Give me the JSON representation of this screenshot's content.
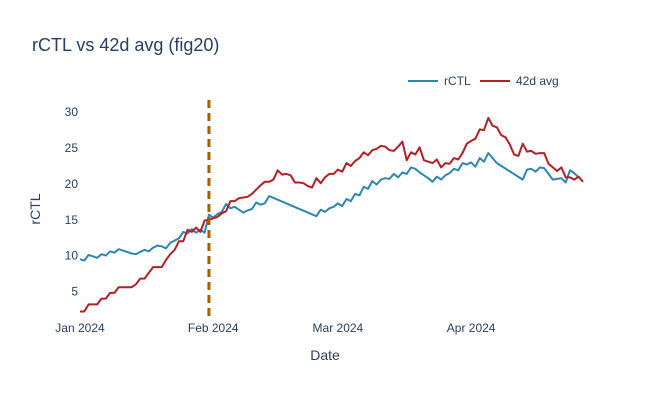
{
  "chart_data": {
    "type": "line",
    "title": "rCTL vs 42d avg (fig20)",
    "xlabel": "Date",
    "ylabel": "rCTL",
    "x_range": [
      "2024-01-01",
      "2024-04-24"
    ],
    "ylim": [
      1.3,
      31.7
    ],
    "x_ticks": [
      {
        "date": "2024-01-01",
        "label": "Jan 2024"
      },
      {
        "date": "2024-02-01",
        "label": "Feb 2024"
      },
      {
        "date": "2024-03-01",
        "label": "Mar 2024"
      },
      {
        "date": "2024-04-01",
        "label": "Apr 2024"
      }
    ],
    "y_ticks": [
      5,
      10,
      15,
      20,
      25,
      30
    ],
    "grid": false,
    "legend": "top-right, horizontal",
    "marker_line": {
      "date": "2024-01-31",
      "color": "#a65e00",
      "style": "dashed"
    },
    "series": [
      {
        "name": "rCTL",
        "color": "#2e86b5",
        "points": [
          [
            "2024-01-01",
            9.5
          ],
          [
            "2024-01-02",
            9.3
          ],
          [
            "2024-01-03",
            10.1
          ],
          [
            "2024-01-04",
            9.9
          ],
          [
            "2024-01-05",
            9.7
          ],
          [
            "2024-01-06",
            10.2
          ],
          [
            "2024-01-07",
            10.0
          ],
          [
            "2024-01-08",
            10.6
          ],
          [
            "2024-01-09",
            10.4
          ],
          [
            "2024-01-10",
            10.9
          ],
          [
            "2024-01-11",
            10.7
          ],
          [
            "2024-01-12",
            10.5
          ],
          [
            "2024-01-13",
            10.3
          ],
          [
            "2024-01-14",
            10.2
          ],
          [
            "2024-01-15",
            10.5
          ],
          [
            "2024-01-16",
            10.8
          ],
          [
            "2024-01-17",
            10.6
          ],
          [
            "2024-01-18",
            11.1
          ],
          [
            "2024-01-19",
            11.4
          ],
          [
            "2024-01-20",
            11.3
          ],
          [
            "2024-01-21",
            11.0
          ],
          [
            "2024-01-22",
            11.8
          ],
          [
            "2024-01-23",
            12.1
          ],
          [
            "2024-01-24",
            12.4
          ],
          [
            "2024-01-25",
            13.3
          ],
          [
            "2024-01-26",
            13.1
          ],
          [
            "2024-01-27",
            13.7
          ],
          [
            "2024-01-28",
            13.2
          ],
          [
            "2024-01-29",
            13.6
          ],
          [
            "2024-01-30",
            13.2
          ],
          [
            "2024-01-31",
            15.7
          ],
          [
            "2024-02-01",
            15.3
          ],
          [
            "2024-02-02",
            15.8
          ],
          [
            "2024-02-03",
            16.1
          ],
          [
            "2024-02-04",
            17.2
          ],
          [
            "2024-02-05",
            16.6
          ],
          [
            "2024-02-06",
            16.8
          ],
          [
            "2024-02-07",
            16.4
          ],
          [
            "2024-02-08",
            16.0
          ],
          [
            "2024-02-09",
            16.3
          ],
          [
            "2024-02-10",
            16.5
          ],
          [
            "2024-02-11",
            17.4
          ],
          [
            "2024-02-12",
            17.1
          ],
          [
            "2024-02-13",
            17.3
          ],
          [
            "2024-02-14",
            18.3
          ],
          [
            "2024-02-25",
            15.5
          ],
          [
            "2024-02-26",
            16.4
          ],
          [
            "2024-02-27",
            16.1
          ],
          [
            "2024-02-28",
            16.6
          ],
          [
            "2024-02-29",
            16.8
          ],
          [
            "2024-03-01",
            17.3
          ],
          [
            "2024-03-02",
            16.9
          ],
          [
            "2024-03-03",
            17.9
          ],
          [
            "2024-03-04",
            17.6
          ],
          [
            "2024-03-05",
            18.6
          ],
          [
            "2024-03-06",
            18.4
          ],
          [
            "2024-03-07",
            19.6
          ],
          [
            "2024-03-08",
            19.3
          ],
          [
            "2024-03-09",
            20.4
          ],
          [
            "2024-03-10",
            19.9
          ],
          [
            "2024-03-11",
            20.6
          ],
          [
            "2024-03-12",
            20.8
          ],
          [
            "2024-03-13",
            20.7
          ],
          [
            "2024-03-14",
            21.4
          ],
          [
            "2024-03-15",
            20.9
          ],
          [
            "2024-03-16",
            21.6
          ],
          [
            "2024-03-17",
            21.4
          ],
          [
            "2024-03-18",
            22.3
          ],
          [
            "2024-03-19",
            22.1
          ],
          [
            "2024-03-20",
            21.6
          ],
          [
            "2024-03-21",
            21.2
          ],
          [
            "2024-03-22",
            20.8
          ],
          [
            "2024-03-23",
            20.3
          ],
          [
            "2024-03-24",
            21.0
          ],
          [
            "2024-03-25",
            20.6
          ],
          [
            "2024-03-26",
            21.2
          ],
          [
            "2024-03-27",
            21.5
          ],
          [
            "2024-03-28",
            22.1
          ],
          [
            "2024-03-29",
            21.9
          ],
          [
            "2024-03-30",
            22.9
          ],
          [
            "2024-03-31",
            22.7
          ],
          [
            "2024-04-01",
            23.0
          ],
          [
            "2024-04-02",
            22.4
          ],
          [
            "2024-04-03",
            23.6
          ],
          [
            "2024-04-04",
            23.1
          ],
          [
            "2024-04-05",
            24.3
          ],
          [
            "2024-04-06",
            23.6
          ],
          [
            "2024-04-07",
            22.9
          ],
          [
            "2024-04-13",
            20.6
          ],
          [
            "2024-04-14",
            22.0
          ],
          [
            "2024-04-15",
            22.1
          ],
          [
            "2024-04-16",
            21.7
          ],
          [
            "2024-04-17",
            22.3
          ],
          [
            "2024-04-18",
            22.2
          ],
          [
            "2024-04-19",
            21.4
          ],
          [
            "2024-04-20",
            20.6
          ],
          [
            "2024-04-21",
            20.7
          ],
          [
            "2024-04-22",
            20.8
          ],
          [
            "2024-04-23",
            20.2
          ],
          [
            "2024-04-24",
            21.9
          ],
          [
            "2024-04-25",
            21.5
          ],
          [
            "2024-04-26",
            20.9
          ]
        ]
      },
      {
        "name": "42d avg",
        "color": "#b51f24",
        "points": [
          [
            "2024-01-01",
            2.2
          ],
          [
            "2024-01-02",
            2.2
          ],
          [
            "2024-01-03",
            3.2
          ],
          [
            "2024-01-04",
            3.2
          ],
          [
            "2024-01-05",
            3.2
          ],
          [
            "2024-01-06",
            4.0
          ],
          [
            "2024-01-07",
            4.0
          ],
          [
            "2024-01-08",
            4.8
          ],
          [
            "2024-01-09",
            4.8
          ],
          [
            "2024-01-10",
            5.6
          ],
          [
            "2024-01-11",
            5.6
          ],
          [
            "2024-01-12",
            5.6
          ],
          [
            "2024-01-13",
            5.6
          ],
          [
            "2024-01-14",
            6.0
          ],
          [
            "2024-01-15",
            6.8
          ],
          [
            "2024-01-16",
            6.8
          ],
          [
            "2024-01-17",
            7.6
          ],
          [
            "2024-01-18",
            8.4
          ],
          [
            "2024-01-19",
            8.4
          ],
          [
            "2024-01-20",
            8.4
          ],
          [
            "2024-01-21",
            9.4
          ],
          [
            "2024-01-22",
            10.2
          ],
          [
            "2024-01-23",
            10.8
          ],
          [
            "2024-01-24",
            12.0
          ],
          [
            "2024-01-25",
            12.0
          ],
          [
            "2024-01-26",
            13.6
          ],
          [
            "2024-01-27",
            13.3
          ],
          [
            "2024-01-28",
            13.9
          ],
          [
            "2024-01-29",
            13.3
          ],
          [
            "2024-01-30",
            14.9
          ],
          [
            "2024-01-31",
            15.0
          ],
          [
            "2024-02-01",
            15.2
          ],
          [
            "2024-02-02",
            15.4
          ],
          [
            "2024-02-03",
            15.9
          ],
          [
            "2024-02-04",
            16.2
          ],
          [
            "2024-02-05",
            17.6
          ],
          [
            "2024-02-06",
            17.6
          ],
          [
            "2024-02-07",
            18.0
          ],
          [
            "2024-02-08",
            18.1
          ],
          [
            "2024-02-09",
            18.2
          ],
          [
            "2024-02-10",
            18.6
          ],
          [
            "2024-02-11",
            19.2
          ],
          [
            "2024-02-12",
            19.8
          ],
          [
            "2024-02-13",
            20.3
          ],
          [
            "2024-02-14",
            20.3
          ],
          [
            "2024-02-15",
            20.6
          ],
          [
            "2024-02-16",
            21.9
          ],
          [
            "2024-02-17",
            21.3
          ],
          [
            "2024-02-18",
            21.4
          ],
          [
            "2024-02-19",
            21.2
          ],
          [
            "2024-02-20",
            20.2
          ],
          [
            "2024-02-21",
            20.2
          ],
          [
            "2024-02-22",
            20.1
          ],
          [
            "2024-02-23",
            19.7
          ],
          [
            "2024-02-24",
            19.5
          ],
          [
            "2024-02-25",
            20.8
          ],
          [
            "2024-02-26",
            20.1
          ],
          [
            "2024-02-27",
            20.9
          ],
          [
            "2024-02-28",
            21.4
          ],
          [
            "2024-02-29",
            21.4
          ],
          [
            "2024-03-01",
            22.0
          ],
          [
            "2024-03-02",
            21.7
          ],
          [
            "2024-03-03",
            22.9
          ],
          [
            "2024-03-04",
            22.5
          ],
          [
            "2024-03-05",
            23.2
          ],
          [
            "2024-03-06",
            23.6
          ],
          [
            "2024-03-07",
            24.4
          ],
          [
            "2024-03-08",
            24.0
          ],
          [
            "2024-03-09",
            24.7
          ],
          [
            "2024-03-10",
            24.9
          ],
          [
            "2024-03-11",
            25.3
          ],
          [
            "2024-03-12",
            25.2
          ],
          [
            "2024-03-13",
            24.7
          ],
          [
            "2024-03-14",
            24.6
          ],
          [
            "2024-03-15",
            25.2
          ],
          [
            "2024-03-16",
            25.9
          ],
          [
            "2024-03-17",
            23.3
          ],
          [
            "2024-03-18",
            24.4
          ],
          [
            "2024-03-19",
            24.1
          ],
          [
            "2024-03-20",
            25.1
          ],
          [
            "2024-03-21",
            23.3
          ],
          [
            "2024-03-22",
            23.1
          ],
          [
            "2024-03-23",
            22.9
          ],
          [
            "2024-03-24",
            23.4
          ],
          [
            "2024-03-25",
            22.3
          ],
          [
            "2024-03-26",
            22.9
          ],
          [
            "2024-03-27",
            22.8
          ],
          [
            "2024-03-28",
            23.6
          ],
          [
            "2024-03-29",
            23.4
          ],
          [
            "2024-03-30",
            24.3
          ],
          [
            "2024-03-31",
            25.6
          ],
          [
            "2024-04-01",
            26.0
          ],
          [
            "2024-04-02",
            26.3
          ],
          [
            "2024-04-03",
            27.6
          ],
          [
            "2024-04-04",
            27.5
          ],
          [
            "2024-04-05",
            29.2
          ],
          [
            "2024-04-06",
            28.1
          ],
          [
            "2024-04-07",
            27.9
          ],
          [
            "2024-04-08",
            26.8
          ],
          [
            "2024-04-09",
            26.5
          ],
          [
            "2024-04-10",
            25.5
          ],
          [
            "2024-04-11",
            24.1
          ],
          [
            "2024-04-12",
            23.9
          ],
          [
            "2024-04-13",
            25.6
          ],
          [
            "2024-04-14",
            24.5
          ],
          [
            "2024-04-15",
            24.6
          ],
          [
            "2024-04-16",
            24.2
          ],
          [
            "2024-04-17",
            24.3
          ],
          [
            "2024-04-18",
            24.3
          ],
          [
            "2024-04-19",
            22.8
          ],
          [
            "2024-04-20",
            22.3
          ],
          [
            "2024-04-21",
            21.8
          ],
          [
            "2024-04-22",
            22.3
          ],
          [
            "2024-04-23",
            20.9
          ],
          [
            "2024-04-24",
            20.9
          ],
          [
            "2024-04-25",
            20.6
          ],
          [
            "2024-04-26",
            21.0
          ],
          [
            "2024-04-27",
            20.3
          ]
        ]
      }
    ]
  }
}
